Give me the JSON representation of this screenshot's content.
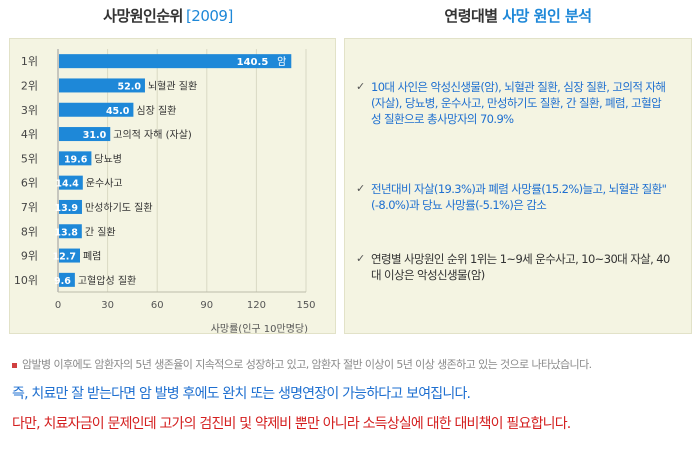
{
  "left_title": {
    "text": "사망원인순위",
    "year": "[2009]"
  },
  "right_title": {
    "text": "연령대별 ",
    "accent": "사망 원인 분석"
  },
  "chart_data": {
    "type": "bar",
    "orientation": "horizontal",
    "ranks": [
      "1위",
      "2위",
      "3위",
      "4위",
      "5위",
      "6위",
      "7위",
      "8위",
      "9위",
      "10위"
    ],
    "categories": [
      "암",
      "뇌혈관 질환",
      "심장 질환",
      "고의적 자해 (자살)",
      "당뇨병",
      "운수사고",
      "만성하기도 질환",
      "간 질환",
      "폐렴",
      "고혈압성 질환"
    ],
    "values": [
      140.5,
      52.0,
      45.0,
      31.0,
      19.6,
      14.4,
      13.9,
      13.8,
      12.7,
      9.6
    ],
    "value_labels": [
      "140.5",
      "52.0",
      "45.0",
      "31.0",
      "19.6",
      "14.4",
      "13.9",
      "13.8",
      "12.7",
      "9.6"
    ],
    "x_ticks": [
      0,
      30,
      60,
      90,
      120,
      150
    ],
    "xlim": [
      0,
      150
    ],
    "xlabel": "사망률(인구 10만명당)",
    "bar_color": "#1e88d8",
    "grid": true
  },
  "analysis": {
    "items": [
      {
        "text": "10대 사인은 악성신생물(암), 뇌혈관 질환, 심장 질환, 고의적 자해(자살), 당뇨병, 운수사고, 만성하기도 질환, 간 질환, 폐렴, 고혈압성 질환으로 총사망자의 70.9%"
      },
      {
        "text": "전년대비 자살(19.3%)과 폐렴 사망률(15.2%)늘고, 뇌혈관 질환\"(-8.0%)과 당뇨 사망률(-5.1%)은 감소"
      },
      {
        "text": "연령별 사망원인 순위 1위는 1~9세 운수사고, 10~30대 자살, 40대 이상은 악성신생물(암)"
      }
    ],
    "check_symbol": "✓"
  },
  "footnote": "암발병 이후에도 암환자의 5년 생존율이 지속적으로 성장하고 있고, 암환자 절반 이상이 5년 이상 생존하고 있는 것으로 나타났습니다.",
  "message_blue": "즉, 치료만 잘 받는다면 암 발병 후에도 완치 또는 생명연장이 가능하다고 보여집니다.",
  "message_red": "다만, 치료자금이 문제인데 고가의 검진비 및 약제비 뿐만 아니라 소득상실에 대한 대비책이 필요합니다.",
  "colors": {
    "accent_blue": "#1e88d8",
    "text_blue": "#1e6fd0",
    "text_red": "#d42020",
    "panel_bg": "#f4f4e2"
  }
}
